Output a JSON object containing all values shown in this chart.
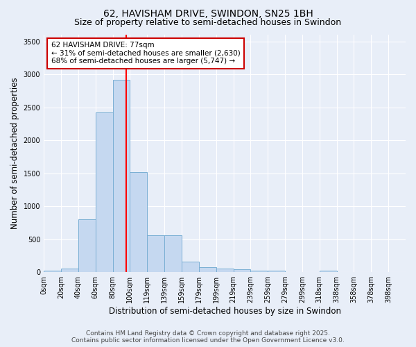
{
  "title1": "62, HAVISHAM DRIVE, SWINDON, SN25 1BH",
  "title2": "Size of property relative to semi-detached houses in Swindon",
  "xlabel": "Distribution of semi-detached houses by size in Swindon",
  "ylabel": "Number of semi-detached properties",
  "categories": [
    "0sqm",
    "20sqm",
    "40sqm",
    "60sqm",
    "80sqm",
    "100sqm",
    "119sqm",
    "139sqm",
    "159sqm",
    "179sqm",
    "199sqm",
    "219sqm",
    "239sqm",
    "259sqm",
    "279sqm",
    "299sqm",
    "318sqm",
    "338sqm",
    "358sqm",
    "378sqm",
    "398sqm"
  ],
  "values": [
    20,
    50,
    800,
    2420,
    2920,
    1520,
    555,
    555,
    165,
    80,
    60,
    40,
    25,
    20,
    5,
    0,
    20,
    0,
    0,
    0,
    0
  ],
  "bar_color": "#c5d8f0",
  "bar_edge_color": "#7aafd4",
  "red_line_x": 4.77,
  "pct_smaller": "31%",
  "n_smaller": "2,630",
  "pct_larger": "68%",
  "n_larger": "5,747",
  "annotation_box_color": "#ffffff",
  "annotation_box_edge": "#cc0000",
  "ylim": [
    0,
    3600
  ],
  "yticks": [
    0,
    500,
    1000,
    1500,
    2000,
    2500,
    3000,
    3500
  ],
  "footer1": "Contains HM Land Registry data © Crown copyright and database right 2025.",
  "footer2": "Contains public sector information licensed under the Open Government Licence v3.0.",
  "bg_color": "#e8eef8",
  "plot_bg_color": "#e8eef8",
  "title1_fontsize": 10,
  "title2_fontsize": 9,
  "tick_fontsize": 7,
  "ylabel_fontsize": 8.5,
  "xlabel_fontsize": 8.5,
  "footer_fontsize": 6.5,
  "annot_fontsize": 7.5
}
